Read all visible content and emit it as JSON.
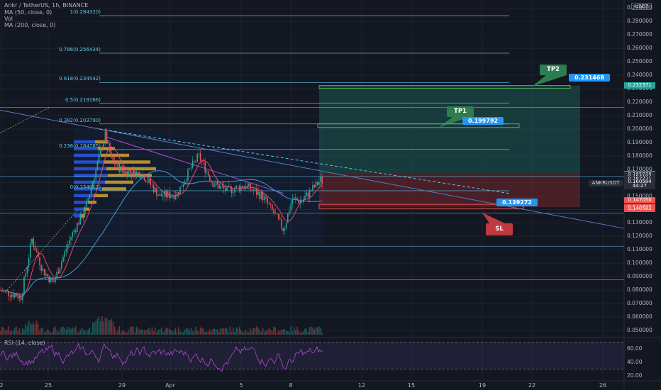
{
  "header": {
    "symbol_line": "Ankr / TetherUS, 1h, BINANCE",
    "indicator_1": "MA (50, close, 0)",
    "indicator_2": "Vol",
    "indicator_3": "MA (200, close, 0)",
    "rsi_label": "RSI (14, close)"
  },
  "quote_currency": "USDT",
  "price_axis": [
    "0.290000",
    "0.280000",
    "0.270000",
    "0.260000",
    "0.250000",
    "0.240000",
    "0.230000",
    "0.220000",
    "0.210000",
    "0.200000",
    "0.190000",
    "0.180000",
    "0.170000",
    "0.160000",
    "0.150000",
    "0.140000",
    "0.130000",
    "0.120000",
    "0.110000",
    "0.100000",
    "0.090000",
    "0.080000",
    "0.070000",
    "0.060000",
    "0.050000"
  ],
  "rsi_axis": [
    "60.00",
    "40.00",
    "20.00"
  ],
  "time_axis": [
    "2",
    "25",
    "29",
    "Apr",
    "5",
    "8",
    "12",
    "15",
    "19",
    "22",
    "26"
  ],
  "fib_levels": [
    {
      "label": "1(0.284320)",
      "price": 0.28432
    },
    {
      "label": "0.786(0.256434)",
      "price": 0.256434
    },
    {
      "label": "0.618(0.234542)",
      "price": 0.234542
    },
    {
      "label": "0.5(0.219166)",
      "price": 0.219166
    },
    {
      "label": "0.382(0.203790)",
      "price": 0.20379
    },
    {
      "label": "0.236(0.184785)",
      "price": 0.184785
    },
    {
      "label": "0(0.154012)",
      "price": 0.154012
    }
  ],
  "price_badges": [
    {
      "text": "0.232371",
      "price": 0.232371,
      "color": "#26a69a"
    },
    {
      "text": "0.166664",
      "price": 0.166664,
      "color": "#ef5350"
    },
    {
      "text": "0.165978",
      "price": 0.165978,
      "color": "#2a2e39"
    },
    {
      "text": "0.164182",
      "price": 0.164182,
      "color": "#2a2e39"
    },
    {
      "text": "0.162721",
      "price": 0.162721,
      "color": "#2a2e39"
    },
    {
      "text": "0.160584",
      "price": 0.160584,
      "color": "#2a2e39"
    },
    {
      "text": "44:27",
      "price": 0.1575,
      "color": "#2a2e39"
    },
    {
      "text": "0.147050",
      "price": 0.14705,
      "color": "#ef5350"
    },
    {
      "text": "0.141785",
      "price": 0.141785,
      "color": "#ef5350"
    },
    {
      "text": "0.140583",
      "price": 0.140583,
      "color": "#ef5350"
    }
  ],
  "pair_tag": "ANKRUSDT",
  "trade": {
    "tp2_label": "TP2",
    "tp2_price": "0.231468",
    "tp1_label": "TP1",
    "tp1_price": "0.199792",
    "sl_label": "SL",
    "sl_price": "0.139272"
  },
  "colors": {
    "background": "#131722",
    "profit_zone": "#1f7a6d",
    "loss_zone": "#8b2a2e",
    "fib_line": "#5ec8e6",
    "rsi_line": "#b04dd1",
    "ma50": "#e5476f",
    "ma200": "#3aa0d9",
    "price_label": "#2196f3",
    "tp_callout": "#2e7d4f",
    "sl_callout": "#c0393f"
  }
}
